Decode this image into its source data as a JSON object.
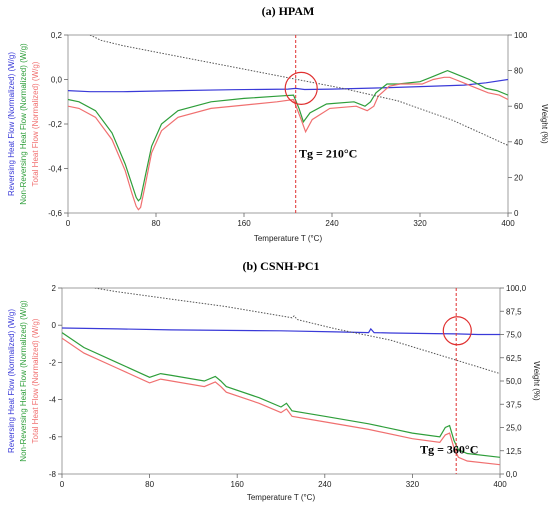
{
  "colors": {
    "reversing": "#3a3ad8",
    "non_reversing": "#2e9e3a",
    "total": "#f07070",
    "weight": "#555555",
    "marker": "#e03030"
  },
  "chart_data": [
    {
      "type": "line",
      "title": "(a) HPAM",
      "xlabel": "Temperature T (°C)",
      "ylabel_parts": [
        {
          "text": "Reversing Heat Flow (Normalized) (W/g)",
          "color": "reversing"
        },
        {
          "text": "Non-Reversing Heat Flow (Normalized) (W/g)",
          "color": "non_reversing"
        },
        {
          "text": "Total Heat Flow (Normalized) (W/g)",
          "color": "total"
        }
      ],
      "y2label": "Weight (%)",
      "xlim": [
        0,
        400
      ],
      "ylim": [
        -0.6,
        0.2
      ],
      "y2lim": [
        0,
        100
      ],
      "xticks": [
        0,
        80,
        160,
        240,
        320,
        400
      ],
      "xtick_labels": [
        "0",
        "80",
        "160",
        "240",
        "320",
        "400"
      ],
      "yticks": [
        0.2,
        0.0,
        -0.2,
        -0.4,
        -0.6
      ],
      "ytick_labels": [
        "0,2",
        "0,0",
        "-0,2",
        "-0,4",
        "-0,6"
      ],
      "y2ticks": [
        0,
        20,
        40,
        60,
        80,
        100
      ],
      "y2tick_labels": [
        "0",
        "20",
        "40",
        "60",
        "80",
        "100"
      ],
      "annotation": {
        "text": "Tg = 210°C",
        "x": 210,
        "y": -0.35
      },
      "vline_x": 207,
      "circle": {
        "x": 212,
        "y": -0.04
      },
      "series": [
        {
          "axis": "left",
          "color": "reversing",
          "x": [
            0,
            20,
            50,
            100,
            150,
            200,
            207,
            215,
            240,
            280,
            320,
            360,
            380,
            400
          ],
          "y": [
            -0.05,
            -0.055,
            -0.055,
            -0.05,
            -0.046,
            -0.043,
            -0.04,
            -0.045,
            -0.043,
            -0.038,
            -0.032,
            -0.025,
            -0.015,
            0.0
          ]
        },
        {
          "axis": "left",
          "color": "non_reversing",
          "x": [
            0,
            10,
            25,
            40,
            52,
            58,
            62,
            64,
            66,
            70,
            76,
            85,
            100,
            130,
            160,
            190,
            205,
            210,
            214,
            220,
            235,
            260,
            270,
            275,
            280,
            290,
            300,
            320,
            330,
            340,
            345,
            350,
            355,
            365,
            380,
            390,
            400
          ],
          "y": [
            -0.09,
            -0.1,
            -0.14,
            -0.24,
            -0.38,
            -0.47,
            -0.53,
            -0.545,
            -0.535,
            -0.44,
            -0.3,
            -0.2,
            -0.14,
            -0.1,
            -0.085,
            -0.075,
            -0.07,
            -0.13,
            -0.19,
            -0.15,
            -0.11,
            -0.1,
            -0.12,
            -0.1,
            -0.06,
            -0.02,
            -0.02,
            -0.01,
            0.01,
            0.03,
            0.04,
            0.03,
            0.02,
            0.0,
            -0.04,
            -0.05,
            -0.07
          ]
        },
        {
          "axis": "left",
          "color": "total",
          "x": [
            0,
            10,
            25,
            40,
            52,
            58,
            62,
            64,
            66,
            70,
            76,
            85,
            100,
            130,
            160,
            190,
            205,
            212,
            216,
            222,
            238,
            262,
            272,
            278,
            282,
            292,
            302,
            322,
            332,
            342,
            347,
            352,
            357,
            367,
            382,
            392,
            400
          ],
          "y": [
            -0.12,
            -0.13,
            -0.17,
            -0.27,
            -0.41,
            -0.51,
            -0.57,
            -0.585,
            -0.575,
            -0.48,
            -0.33,
            -0.23,
            -0.17,
            -0.13,
            -0.115,
            -0.1,
            -0.09,
            -0.18,
            -0.235,
            -0.18,
            -0.13,
            -0.12,
            -0.14,
            -0.12,
            -0.075,
            -0.03,
            -0.02,
            -0.02,
            0.0,
            0.01,
            0.01,
            0.0,
            -0.01,
            -0.03,
            -0.06,
            -0.07,
            -0.09
          ]
        },
        {
          "axis": "right",
          "color": "weight",
          "dashed": true,
          "x": [
            20,
            30,
            50,
            100,
            150,
            200,
            250,
            300,
            350,
            400
          ],
          "y": [
            100,
            97,
            94,
            88,
            82,
            76,
            70,
            63,
            52,
            38
          ]
        }
      ]
    },
    {
      "type": "line",
      "title": "(b) CSNH-PC1",
      "xlabel": "Temperature T (°C)",
      "ylabel_parts": [
        {
          "text": "Reversing Heat Flow (Normalized) (W/g)",
          "color": "reversing"
        },
        {
          "text": "Non-Reversing Heat Flow (Normalized) (W/g)",
          "color": "non_reversing"
        },
        {
          "text": "Total Heat Flow (Normalized) (W/g)",
          "color": "total"
        }
      ],
      "y2label": "Weight (%)",
      "xlim": [
        0,
        400
      ],
      "ylim": [
        -8,
        2
      ],
      "y2lim": [
        0,
        100
      ],
      "xticks": [
        0,
        80,
        160,
        240,
        320,
        400
      ],
      "xtick_labels": [
        "0",
        "80",
        "160",
        "240",
        "320",
        "400"
      ],
      "yticks": [
        2,
        0,
        -2,
        -4,
        -6,
        -8
      ],
      "ytick_labels": [
        "2",
        "0",
        "-2",
        "-4",
        "-6",
        "-8"
      ],
      "y2ticks": [
        0,
        12.5,
        25,
        37.5,
        50,
        62.5,
        75,
        87.5,
        100
      ],
      "y2tick_labels": [
        "0,0",
        "12,5",
        "25,0",
        "37,5",
        "50,0",
        "62,5",
        "75,0",
        "87,5",
        "100,0"
      ],
      "annotation": {
        "text": "Tg = 360°C",
        "x": 327,
        "y": -6.9
      },
      "vline_x": 360,
      "circle": {
        "x": 361,
        "y": -0.3
      },
      "series": [
        {
          "axis": "left",
          "color": "reversing",
          "x": [
            0,
            50,
            100,
            150,
            200,
            250,
            280,
            282,
            285,
            300,
            340,
            360,
            380,
            400
          ],
          "y": [
            -0.15,
            -0.2,
            -0.25,
            -0.28,
            -0.3,
            -0.36,
            -0.4,
            -0.2,
            -0.4,
            -0.42,
            -0.45,
            -0.47,
            -0.5,
            -0.5
          ]
        },
        {
          "axis": "left",
          "color": "non_reversing",
          "x": [
            0,
            20,
            50,
            80,
            90,
            100,
            130,
            140,
            145,
            150,
            180,
            200,
            205,
            210,
            240,
            280,
            320,
            345,
            350,
            354,
            358,
            362,
            370,
            400
          ],
          "y": [
            -0.4,
            -1.2,
            -2.0,
            -2.8,
            -2.6,
            -2.7,
            -3.0,
            -2.75,
            -3.0,
            -3.3,
            -3.9,
            -4.4,
            -4.2,
            -4.6,
            -4.9,
            -5.3,
            -5.8,
            -6.0,
            -5.5,
            -5.4,
            -6.2,
            -6.7,
            -6.9,
            -7.1
          ]
        },
        {
          "axis": "left",
          "color": "total",
          "x": [
            0,
            20,
            50,
            80,
            90,
            100,
            130,
            140,
            145,
            150,
            180,
            200,
            205,
            210,
            240,
            280,
            320,
            345,
            350,
            354,
            358,
            362,
            370,
            400
          ],
          "y": [
            -0.7,
            -1.5,
            -2.3,
            -3.1,
            -2.9,
            -3.0,
            -3.3,
            -3.05,
            -3.3,
            -3.6,
            -4.2,
            -4.7,
            -4.5,
            -4.9,
            -5.2,
            -5.6,
            -6.1,
            -6.3,
            -5.9,
            -5.8,
            -6.6,
            -7.1,
            -7.3,
            -7.5
          ]
        },
        {
          "axis": "right",
          "color": "weight",
          "dashed": true,
          "x": [
            30,
            50,
            100,
            150,
            200,
            210,
            212,
            215,
            250,
            300,
            350,
            400
          ],
          "y": [
            100,
            98,
            94,
            90,
            85,
            84,
            85,
            83,
            78,
            72,
            63,
            54
          ]
        }
      ]
    }
  ]
}
